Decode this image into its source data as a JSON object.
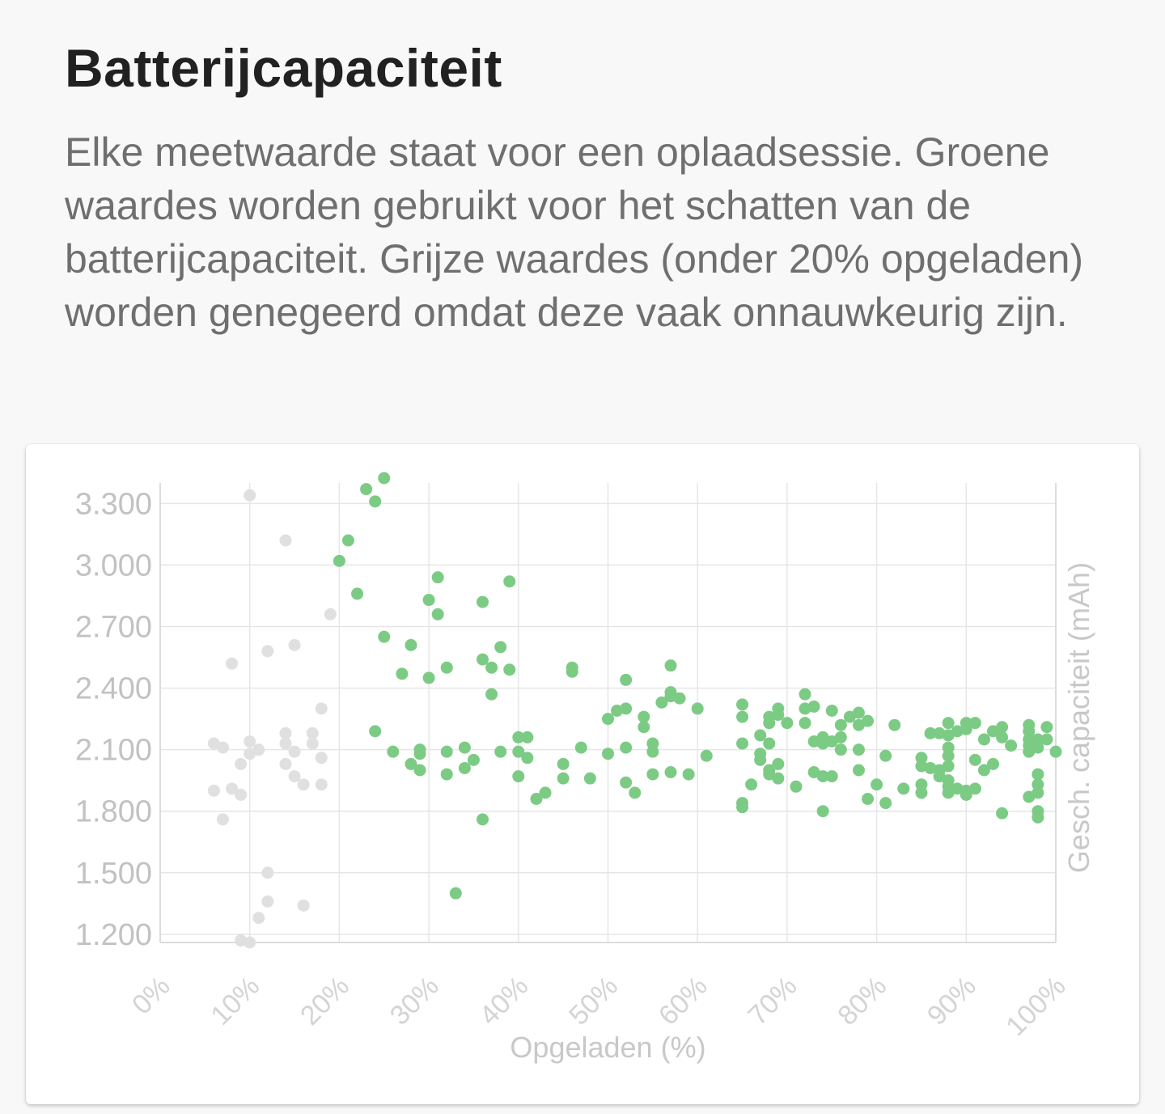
{
  "page": {
    "title": "Batterijcapaciteit",
    "description": "Elke meetwaarde staat voor een oplaadsessie. Groene waardes worden gebruikt voor het schatten van de batterijcapaciteit. Grijze waardes (onder 20% opgeladen) worden genegeerd omdat deze vaak onnauwkeurig zijn."
  },
  "colors": {
    "used": "#7ccb85",
    "ignored": "#e0e0e0",
    "grid": "#e6e6e6",
    "axis": "#dcdcdc"
  },
  "chart_data": {
    "type": "scatter",
    "xlabel": "Opgeladen (%)",
    "ylabel": "Gesch. capaciteit (mAh)",
    "xlim": [
      0,
      100
    ],
    "ylim": [
      1160,
      3400
    ],
    "x_ticks": [
      0,
      10,
      20,
      30,
      40,
      50,
      60,
      70,
      80,
      90,
      100
    ],
    "x_tick_labels": [
      "0%",
      "10%",
      "20%",
      "30%",
      "40%",
      "50%",
      "60%",
      "70%",
      "80%",
      "90%",
      "100%"
    ],
    "y_ticks": [
      1200,
      1500,
      1800,
      2100,
      2400,
      2700,
      3000,
      3300
    ],
    "y_tick_labels": [
      "1.200",
      "1.500",
      "1.800",
      "2.100",
      "2.400",
      "2.700",
      "3.000",
      "3.300"
    ],
    "grid": true,
    "series": [
      {
        "role": "ignored",
        "color": "#e0e0e0",
        "points": [
          [
            10,
            3340
          ],
          [
            14,
            3120
          ],
          [
            19,
            2760
          ],
          [
            15,
            2610
          ],
          [
            8,
            2520
          ],
          [
            12,
            2580
          ],
          [
            18,
            2300
          ],
          [
            6,
            2130
          ],
          [
            7,
            2110
          ],
          [
            9,
            2030
          ],
          [
            10,
            2080
          ],
          [
            10,
            2140
          ],
          [
            11,
            2100
          ],
          [
            14,
            2180
          ],
          [
            14,
            2130
          ],
          [
            15,
            2090
          ],
          [
            17,
            2180
          ],
          [
            17,
            2130
          ],
          [
            18,
            2060
          ],
          [
            14,
            2030
          ],
          [
            15,
            1970
          ],
          [
            16,
            1930
          ],
          [
            18,
            1930
          ],
          [
            6,
            1900
          ],
          [
            8,
            1910
          ],
          [
            9,
            1880
          ],
          [
            7,
            1760
          ],
          [
            12,
            1500
          ],
          [
            12,
            1360
          ],
          [
            11,
            1280
          ],
          [
            16,
            1340
          ],
          [
            9,
            1170
          ],
          [
            10,
            1160
          ]
        ]
      },
      {
        "role": "used",
        "color": "#7ccb85",
        "points": [
          [
            25,
            3440
          ],
          [
            23,
            3370
          ],
          [
            24,
            3310
          ],
          [
            21,
            3120
          ],
          [
            20,
            3020
          ],
          [
            22,
            2860
          ],
          [
            25,
            2650
          ],
          [
            28,
            2610
          ],
          [
            27,
            2470
          ],
          [
            30,
            2450
          ],
          [
            31,
            2940
          ],
          [
            30,
            2830
          ],
          [
            31,
            2760
          ],
          [
            32,
            2500
          ],
          [
            39,
            2920
          ],
          [
            36,
            2820
          ],
          [
            38,
            2600
          ],
          [
            36,
            2540
          ],
          [
            37,
            2500
          ],
          [
            39,
            2490
          ],
          [
            37,
            2370
          ],
          [
            46,
            2500
          ],
          [
            46,
            2480
          ],
          [
            57,
            2510
          ],
          [
            57,
            2380
          ],
          [
            57,
            2360
          ],
          [
            58,
            2350
          ],
          [
            52,
            2440
          ],
          [
            56,
            2330
          ],
          [
            60,
            2300
          ],
          [
            24,
            2190
          ],
          [
            26,
            2090
          ],
          [
            28,
            2030
          ],
          [
            29,
            2100
          ],
          [
            29,
            2080
          ],
          [
            29,
            2000
          ],
          [
            32,
            2090
          ],
          [
            32,
            1980
          ],
          [
            33,
            1400
          ],
          [
            34,
            2110
          ],
          [
            34,
            2010
          ],
          [
            35,
            2050
          ],
          [
            36,
            1760
          ],
          [
            38,
            2090
          ],
          [
            40,
            2160
          ],
          [
            41,
            2160
          ],
          [
            40,
            2090
          ],
          [
            41,
            2060
          ],
          [
            40,
            1970
          ],
          [
            42,
            1860
          ],
          [
            43,
            1890
          ],
          [
            45,
            2030
          ],
          [
            45,
            1960
          ],
          [
            47,
            2110
          ],
          [
            48,
            1960
          ],
          [
            50,
            2250
          ],
          [
            51,
            2290
          ],
          [
            52,
            2300
          ],
          [
            50,
            2080
          ],
          [
            52,
            2110
          ],
          [
            52,
            1940
          ],
          [
            53,
            1890
          ],
          [
            54,
            2260
          ],
          [
            54,
            2210
          ],
          [
            55,
            2130
          ],
          [
            55,
            2090
          ],
          [
            55,
            1980
          ],
          [
            57,
            1990
          ],
          [
            59,
            1980
          ],
          [
            61,
            2070
          ],
          [
            65,
            2320
          ],
          [
            65,
            2260
          ],
          [
            65,
            2130
          ],
          [
            65,
            1840
          ],
          [
            65,
            1820
          ],
          [
            66,
            1930
          ],
          [
            67,
            2170
          ],
          [
            67,
            2080
          ],
          [
            67,
            2050
          ],
          [
            68,
            2260
          ],
          [
            68,
            2230
          ],
          [
            68,
            2130
          ],
          [
            68,
            2000
          ],
          [
            68,
            1980
          ],
          [
            69,
            2300
          ],
          [
            69,
            2270
          ],
          [
            69,
            2030
          ],
          [
            69,
            1960
          ],
          [
            70,
            2230
          ],
          [
            71,
            1920
          ],
          [
            72,
            2370
          ],
          [
            72,
            2300
          ],
          [
            72,
            2230
          ],
          [
            73,
            2310
          ],
          [
            73,
            2140
          ],
          [
            73,
            1990
          ],
          [
            74,
            2160
          ],
          [
            74,
            2130
          ],
          [
            74,
            1970
          ],
          [
            74,
            1800
          ],
          [
            75,
            2140
          ],
          [
            75,
            1970
          ],
          [
            75,
            2290
          ],
          [
            76,
            2220
          ],
          [
            76,
            2160
          ],
          [
            76,
            2100
          ],
          [
            77,
            2260
          ],
          [
            78,
            2280
          ],
          [
            78,
            2220
          ],
          [
            78,
            2100
          ],
          [
            78,
            2000
          ],
          [
            79,
            2240
          ],
          [
            79,
            1860
          ],
          [
            80,
            1930
          ],
          [
            81,
            2070
          ],
          [
            81,
            1840
          ],
          [
            82,
            2220
          ],
          [
            83,
            1910
          ],
          [
            85,
            2060
          ],
          [
            85,
            2020
          ],
          [
            85,
            1930
          ],
          [
            85,
            1890
          ],
          [
            86,
            2180
          ],
          [
            86,
            2010
          ],
          [
            87,
            2180
          ],
          [
            87,
            2000
          ],
          [
            87,
            1970
          ],
          [
            88,
            2230
          ],
          [
            88,
            2170
          ],
          [
            88,
            2110
          ],
          [
            88,
            2070
          ],
          [
            88,
            2020
          ],
          [
            88,
            1950
          ],
          [
            88,
            1920
          ],
          [
            88,
            1890
          ],
          [
            89,
            2190
          ],
          [
            89,
            1910
          ],
          [
            90,
            2230
          ],
          [
            90,
            2200
          ],
          [
            90,
            1900
          ],
          [
            90,
            1880
          ],
          [
            91,
            2230
          ],
          [
            91,
            2050
          ],
          [
            91,
            1910
          ],
          [
            92,
            2150
          ],
          [
            92,
            2000
          ],
          [
            93,
            2190
          ],
          [
            93,
            2030
          ],
          [
            94,
            2210
          ],
          [
            94,
            2160
          ],
          [
            94,
            1790
          ],
          [
            95,
            2120
          ],
          [
            97,
            2220
          ],
          [
            97,
            2190
          ],
          [
            97,
            2150
          ],
          [
            97,
            2120
          ],
          [
            97,
            2090
          ],
          [
            97,
            1870
          ],
          [
            98,
            2150
          ],
          [
            98,
            2110
          ],
          [
            98,
            1980
          ],
          [
            98,
            1930
          ],
          [
            98,
            1890
          ],
          [
            98,
            1800
          ],
          [
            98,
            1770
          ],
          [
            99,
            2210
          ],
          [
            99,
            2150
          ],
          [
            100,
            2090
          ]
        ]
      }
    ]
  }
}
